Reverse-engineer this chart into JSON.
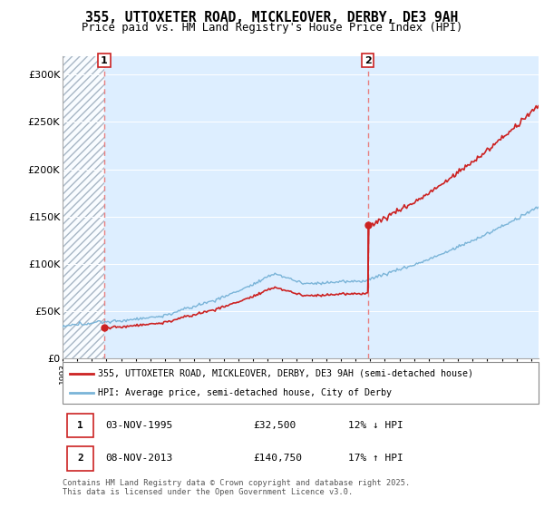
{
  "title_line1": "355, UTTOXETER ROAD, MICKLEOVER, DERBY, DE3 9AH",
  "title_line2": "Price paid vs. HM Land Registry's House Price Index (HPI)",
  "ylim": [
    0,
    320000
  ],
  "yticks": [
    0,
    50000,
    100000,
    150000,
    200000,
    250000,
    300000
  ],
  "ytick_labels": [
    "£0",
    "£50K",
    "£100K",
    "£150K",
    "£200K",
    "£250K",
    "£300K"
  ],
  "sale1_year": 1995.843,
  "sale1_price": 32500,
  "sale2_year": 2013.843,
  "sale2_price": 140750,
  "hpi_color": "#7ab4d8",
  "price_color": "#cc2222",
  "vline_color": "#e88080",
  "chart_bg_color": "#ddeeff",
  "hatch_color": "#aabbcc",
  "legend_line1": "355, UTTOXETER ROAD, MICKLEOVER, DERBY, DE3 9AH (semi-detached house)",
  "legend_line2": "HPI: Average price, semi-detached house, City of Derby",
  "table_row1": [
    "1",
    "03-NOV-1995",
    "£32,500",
    "12% ↓ HPI"
  ],
  "table_row2": [
    "2",
    "08-NOV-2013",
    "£140,750",
    "17% ↑ HPI"
  ],
  "footnote": "Contains HM Land Registry data © Crown copyright and database right 2025.\nThis data is licensed under the Open Government Licence v3.0.",
  "title_fontsize": 10.5,
  "tick_fontsize": 8,
  "hatch_start_year": 1993.0,
  "hatch_end_year": 1995.843,
  "xmin": 1993.0,
  "xmax": 2025.5
}
